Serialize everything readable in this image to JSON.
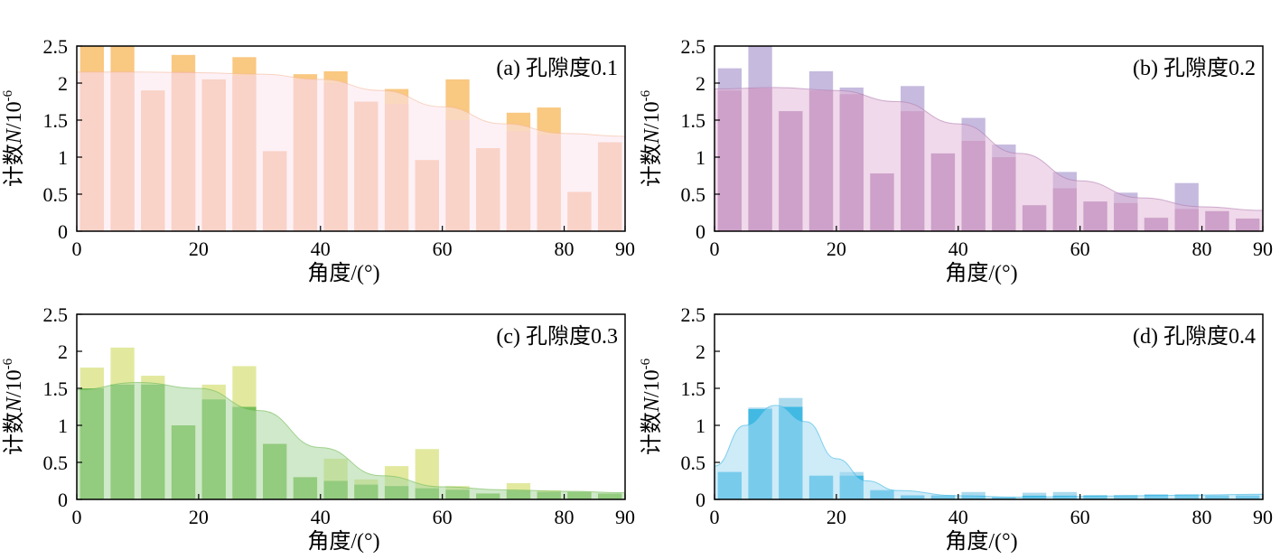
{
  "chart_data": [
    {
      "type": "bar",
      "panel_label": "(a) 孔隙度0.1",
      "xlabel": "角度/(°)",
      "ylabel": "计数N/10",
      "ylabel_exponent": "-6",
      "xlim": [
        0,
        90
      ],
      "ylim": [
        0,
        2.5
      ],
      "xticks": [
        0,
        20,
        40,
        60,
        80,
        90
      ],
      "yticks": [
        0,
        0.5,
        1,
        1.5,
        2,
        2.5
      ],
      "bin_width": 5,
      "bar_colors": {
        "raw": "#f9c57a",
        "fitted": "#f5b99a",
        "curve_fill": "#fbe6ee"
      },
      "bins_x": [
        2.5,
        7.5,
        12.5,
        17.5,
        22.5,
        27.5,
        32.5,
        37.5,
        42.5,
        47.5,
        52.5,
        57.5,
        62.5,
        67.5,
        72.5,
        77.5,
        82.5,
        87.5
      ],
      "series": [
        {
          "values": [
            2.55,
            2.5,
            1.9,
            2.38,
            2.05,
            2.35,
            1.08,
            2.12,
            2.16,
            1.75,
            1.92,
            0.96,
            2.05,
            1.12,
            1.6,
            1.67,
            0.53,
            1.2
          ]
        },
        {
          "values": [
            2.15,
            2.15,
            1.9,
            2.15,
            2.05,
            2.1,
            1.08,
            2.05,
            2.0,
            1.75,
            1.72,
            0.96,
            1.5,
            1.12,
            1.35,
            1.3,
            0.53,
            1.2
          ]
        }
      ],
      "curve": {
        "x": [
          0,
          10,
          20,
          30,
          40,
          50,
          60,
          70,
          80,
          90
        ],
        "y": [
          2.15,
          2.15,
          2.14,
          2.12,
          2.05,
          1.9,
          1.68,
          1.45,
          1.32,
          1.28
        ]
      }
    },
    {
      "type": "bar",
      "panel_label": "(b) 孔隙度0.2",
      "xlabel": "角度/(°)",
      "ylabel": "计数N/10",
      "ylabel_exponent": "-6",
      "xlim": [
        0,
        90
      ],
      "ylim": [
        0,
        2.5
      ],
      "xticks": [
        0,
        20,
        40,
        60,
        80,
        90
      ],
      "yticks": [
        0,
        0.5,
        1,
        1.5,
        2,
        2.5
      ],
      "bin_width": 5,
      "bar_colors": {
        "raw": "#c3b6dc",
        "fitted": "#b07fb3",
        "curve_fill": "#e3b9d8"
      },
      "bins_x": [
        2.5,
        7.5,
        12.5,
        17.5,
        22.5,
        27.5,
        32.5,
        37.5,
        42.5,
        47.5,
        52.5,
        57.5,
        62.5,
        67.5,
        72.5,
        77.5,
        82.5,
        87.5
      ],
      "series": [
        {
          "values": [
            2.2,
            2.5,
            1.62,
            2.16,
            1.94,
            0.78,
            1.96,
            1.05,
            1.53,
            1.17,
            0.35,
            0.8,
            0.4,
            0.52,
            0.18,
            0.65,
            0.27,
            0.17
          ]
        },
        {
          "values": [
            1.9,
            1.93,
            1.62,
            1.9,
            1.85,
            0.78,
            1.62,
            1.05,
            1.22,
            1.0,
            0.35,
            0.58,
            0.4,
            0.38,
            0.18,
            0.3,
            0.27,
            0.17
          ]
        }
      ],
      "curve": {
        "x": [
          0,
          10,
          20,
          30,
          40,
          50,
          60,
          70,
          80,
          90
        ],
        "y": [
          1.92,
          1.94,
          1.9,
          1.75,
          1.45,
          1.05,
          0.68,
          0.45,
          0.33,
          0.28
        ]
      }
    },
    {
      "type": "bar",
      "panel_label": "(c) 孔隙度0.3",
      "xlabel": "角度/(°)",
      "ylabel": "计数N/10",
      "ylabel_exponent": "-6",
      "xlim": [
        0,
        90
      ],
      "ylim": [
        0,
        2.5
      ],
      "xticks": [
        0,
        20,
        40,
        60,
        80,
        90
      ],
      "yticks": [
        0,
        0.5,
        1,
        1.5,
        2,
        2.5
      ],
      "bin_width": 5,
      "bar_colors": {
        "raw": "#e0e89a",
        "fitted": "#72bb55",
        "curve_fill": "#a9d79e"
      },
      "bins_x": [
        2.5,
        7.5,
        12.5,
        17.5,
        22.5,
        27.5,
        32.5,
        37.5,
        42.5,
        47.5,
        52.5,
        57.5,
        62.5,
        67.5,
        72.5,
        77.5,
        82.5,
        87.5
      ],
      "series": [
        {
          "values": [
            1.78,
            2.05,
            1.67,
            1.0,
            1.55,
            1.8,
            0.75,
            0.3,
            0.55,
            0.27,
            0.45,
            0.68,
            0.18,
            0.08,
            0.22,
            0.12,
            0.1,
            0.08
          ]
        },
        {
          "values": [
            1.5,
            1.55,
            1.55,
            1.0,
            1.35,
            1.25,
            0.75,
            0.3,
            0.25,
            0.2,
            0.18,
            0.15,
            0.13,
            0.08,
            0.12,
            0.1,
            0.1,
            0.08
          ]
        }
      ],
      "curve": {
        "x": [
          0,
          10,
          20,
          30,
          40,
          50,
          60,
          70,
          80,
          90
        ],
        "y": [
          1.48,
          1.58,
          1.5,
          1.2,
          0.7,
          0.32,
          0.17,
          0.13,
          0.11,
          0.09
        ]
      }
    },
    {
      "type": "bar",
      "panel_label": "(d) 孔隙度0.4",
      "xlabel": "角度/(°)",
      "ylabel": "计数N/10",
      "ylabel_exponent": "-6",
      "xlim": [
        0,
        90
      ],
      "ylim": [
        0,
        2.5
      ],
      "xticks": [
        0,
        20,
        40,
        60,
        80,
        90
      ],
      "yticks": [
        0,
        0.5,
        1,
        1.5,
        2,
        2.5
      ],
      "bin_width": 5,
      "bar_colors": {
        "raw": "#a8d8ec",
        "fitted": "#3bb7e3",
        "curve_fill": "#a6dbf2"
      },
      "bins_x": [
        2.5,
        7.5,
        12.5,
        17.5,
        22.5,
        27.5,
        32.5,
        37.5,
        42.5,
        47.5,
        52.5,
        57.5,
        62.5,
        67.5,
        72.5,
        77.5,
        82.5,
        87.5
      ],
      "series": [
        {
          "values": [
            0.37,
            1.24,
            1.37,
            0.32,
            0.37,
            0.13,
            0.06,
            0.06,
            0.1,
            0.03,
            0.09,
            0.1,
            0.06,
            0.06,
            0.07,
            0.07,
            0.06,
            0.06
          ]
        },
        {
          "values": [
            0.37,
            1.22,
            1.25,
            0.32,
            0.32,
            0.12,
            0.05,
            0.05,
            0.05,
            0.03,
            0.05,
            0.05,
            0.05,
            0.05,
            0.06,
            0.06,
            0.05,
            0.05
          ]
        }
      ],
      "curve": {
        "x": [
          0,
          5,
          10,
          15,
          20,
          25,
          30,
          40,
          50,
          60,
          70,
          80,
          90
        ],
        "y": [
          0.45,
          1.0,
          1.27,
          1.05,
          0.55,
          0.25,
          0.12,
          0.05,
          0.03,
          0.04,
          0.05,
          0.06,
          0.07
        ]
      }
    }
  ]
}
